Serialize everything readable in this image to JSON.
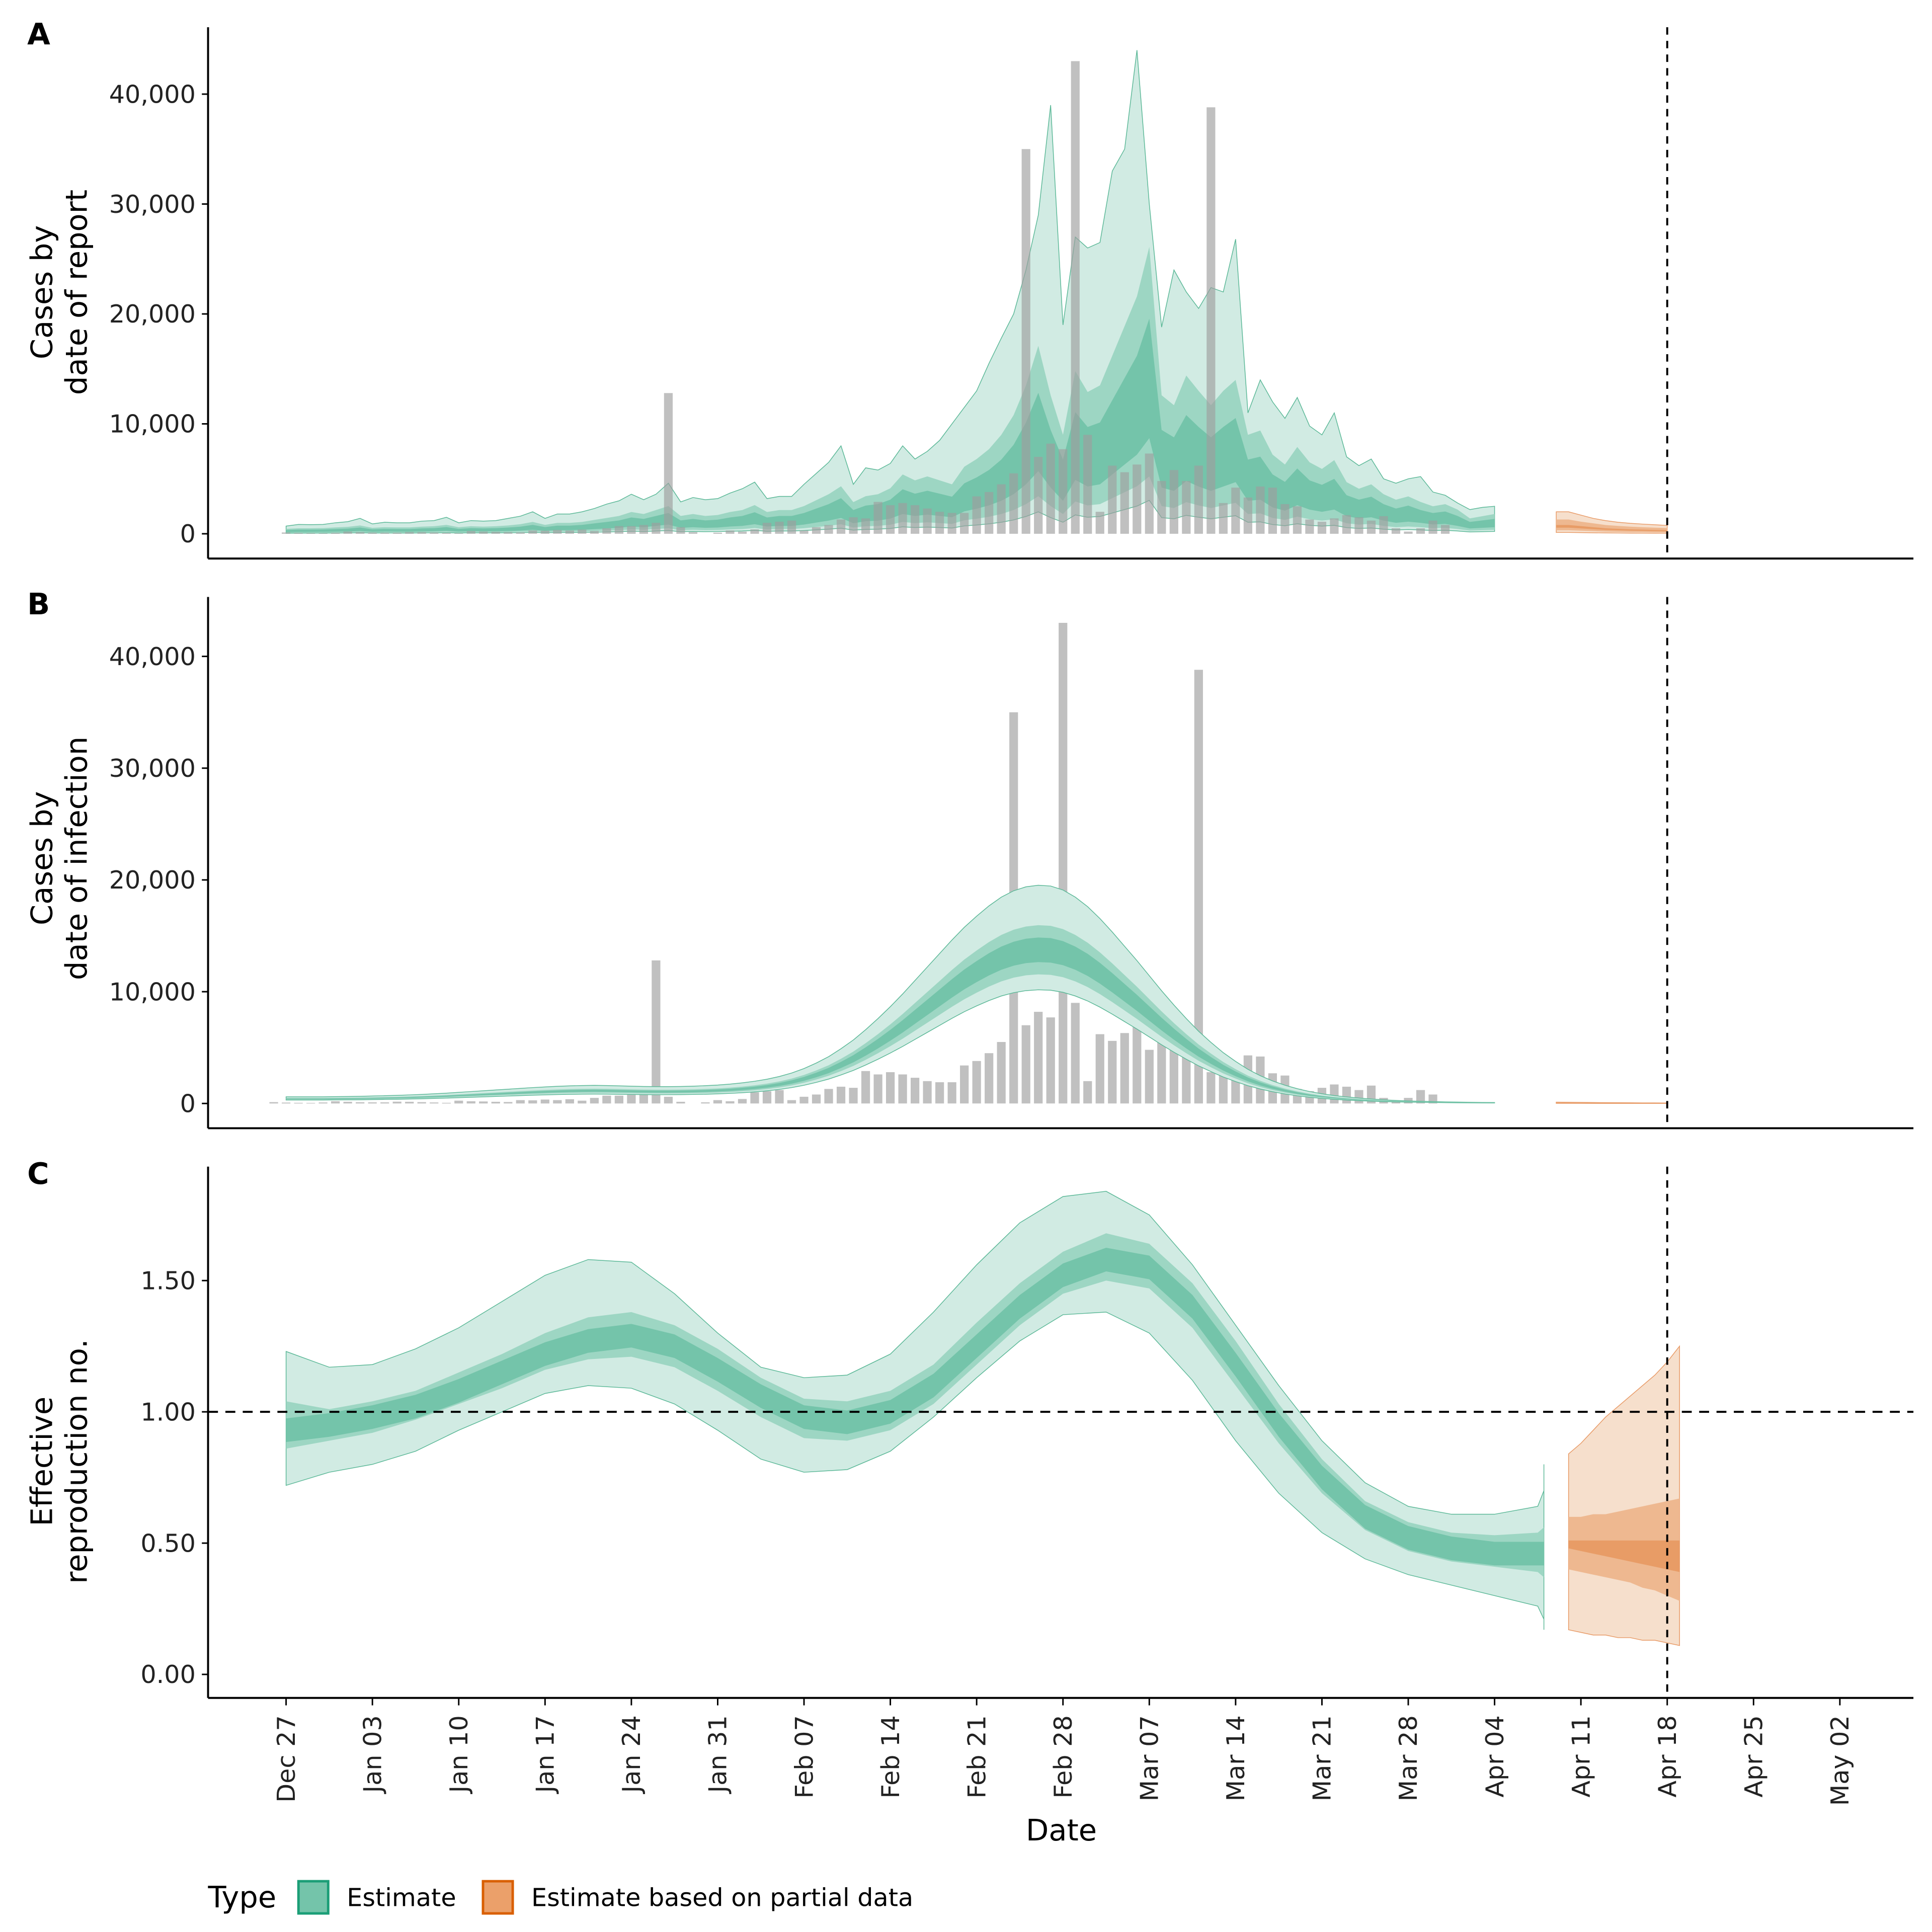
{
  "chart_data": [
    {
      "panel": "A",
      "type": "bar",
      "ylabel": [
        "Cases by",
        "date of report"
      ],
      "yticks": [
        0,
        10000,
        20000,
        30000,
        40000
      ],
      "ytick_labels": [
        "0",
        "10,000",
        "20,000",
        "30,000",
        "40,000"
      ],
      "ylim": [
        -2200,
        46000
      ],
      "bars_start_date": "Dec 27",
      "bars": [
        120,
        80,
        60,
        50,
        90,
        200,
        150,
        110,
        100,
        100,
        160,
        150,
        120,
        90,
        60,
        250,
        200,
        180,
        150,
        130,
        300,
        280,
        350,
        300,
        380,
        250,
        500,
        700,
        700,
        800,
        1000,
        12800,
        600,
        150,
        0,
        100,
        300,
        200,
        400,
        1000,
        1100,
        1200,
        300,
        600,
        800,
        1300,
        1500,
        1400,
        2900,
        2600,
        2800,
        2600,
        2300,
        2000,
        1900,
        1900,
        3400,
        3800,
        4500,
        5500,
        35000,
        7000,
        8200,
        7700,
        43000,
        9000,
        2000,
        6200,
        5600,
        6300,
        7300,
        4800,
        5800,
        4800,
        6200,
        38800,
        2800,
        4200,
        3300,
        4300,
        4200,
        2700,
        2500,
        1300,
        1100,
        1400,
        1700,
        1500,
        1200,
        1600,
        500,
        200,
        500,
        1200,
        800
      ],
      "estimate": {
        "start_date": "Dec 27",
        "median": [
          250,
          280,
          280,
          290,
          320,
          350,
          420,
          300,
          330,
          320,
          320,
          360,
          380,
          450,
          330,
          380,
          360,
          380,
          420,
          480,
          600,
          450,
          550,
          550,
          600,
          700,
          800,
          900,
          1100,
          1000,
          1200,
          1400,
          900,
          1000,
          900,
          950,
          1100,
          1200,
          1450,
          1100,
          1200,
          1200,
          1400,
          1700,
          2000,
          2400,
          1600,
          1900,
          2000,
          2300,
          3000,
          2700,
          2900,
          2700,
          2500,
          3400,
          3800,
          4300,
          5000,
          6000,
          7500,
          9500,
          7000,
          5000,
          8200,
          7200,
          7500,
          9000,
          10500,
          12000,
          14500,
          7000,
          6500,
          8000,
          7200,
          6500,
          7200,
          7800,
          5000,
          5200,
          4000,
          3500,
          4400,
          3600,
          3300,
          3700,
          2600,
          2300,
          2500,
          2000,
          1700,
          1900,
          1600,
          1400,
          1500,
          1200,
          800,
          900,
          1000
        ],
        "ci20_lo": [
          150,
          170,
          170,
          180,
          190,
          210,
          250,
          180,
          200,
          190,
          190,
          210,
          230,
          270,
          200,
          230,
          220,
          230,
          250,
          290,
          360,
          270,
          330,
          330,
          360,
          420,
          480,
          540,
          660,
          600,
          720,
          840,
          540,
          600,
          540,
          570,
          660,
          720,
          870,
          660,
          720,
          720,
          840,
          1020,
          1200,
          1440,
          960,
          1140,
          1200,
          1380,
          1800,
          1620,
          1740,
          1620,
          1500,
          2040,
          2280,
          2580,
          3000,
          3600,
          4500,
          5700,
          4200,
          3000,
          4900,
          4300,
          4500,
          5400,
          6300,
          7200,
          8700,
          4200,
          3900,
          4800,
          4300,
          3900,
          4300,
          4700,
          3000,
          3100,
          2400,
          2100,
          2600,
          2200,
          2000,
          2200,
          1600,
          1400,
          1500,
          1200,
          1000,
          1100,
          1000,
          850,
          900,
          720,
          480,
          540,
          600
        ],
        "ci50_hi": [
          450,
          500,
          500,
          520,
          580,
          630,
          760,
          540,
          600,
          580,
          580,
          650,
          690,
          810,
          600,
          690,
          650,
          690,
          760,
          870,
          1080,
          810,
          990,
          990,
          1080,
          1260,
          1440,
          1620,
          1980,
          1800,
          2160,
          2520,
          1620,
          1800,
          1620,
          1710,
          1980,
          2160,
          2610,
          1980,
          2160,
          2160,
          2520,
          3060,
          3600,
          4320,
          2880,
          3420,
          3600,
          4140,
          5400,
          4860,
          5220,
          4860,
          4500,
          6100,
          6800,
          7700,
          9000,
          10800,
          13500,
          17100,
          12600,
          9000,
          14800,
          12900,
          13500,
          16200,
          18900,
          21600,
          26100,
          12600,
          11700,
          14400,
          13000,
          11700,
          13000,
          14000,
          9000,
          9400,
          7200,
          6300,
          7900,
          6500,
          5900,
          6700,
          4700,
          4100,
          4500,
          3600,
          3100,
          3400,
          2900,
          2500,
          2700,
          2200,
          1400,
          1600,
          1800
        ],
        "ci90_hi": [
          700,
          850,
          830,
          850,
          1000,
          1100,
          1400,
          900,
          1050,
          1000,
          1000,
          1150,
          1200,
          1500,
          1000,
          1200,
          1150,
          1200,
          1400,
          1600,
          2000,
          1400,
          1800,
          1800,
          2000,
          2300,
          2700,
          3000,
          3600,
          3100,
          3600,
          4600,
          2900,
          3300,
          3100,
          3200,
          3700,
          4100,
          4700,
          3200,
          3400,
          3400,
          4500,
          5500,
          6500,
          8000,
          4500,
          6000,
          5800,
          6400,
          8000,
          6800,
          7500,
          8500,
          10000,
          11500,
          13000,
          15500,
          17800,
          20000,
          24000,
          29000,
          39000,
          19000,
          27000,
          26000,
          26500,
          33000,
          35000,
          44000,
          30000,
          18800,
          24000,
          22000,
          20500,
          22400,
          22000,
          26800,
          11000,
          14000,
          12000,
          10500,
          12400,
          9800,
          9000,
          11000,
          7000,
          6200,
          6800,
          5000,
          4600,
          5000,
          5200,
          3800,
          3500,
          2800,
          2200,
          2400,
          2500
        ]
      },
      "partial": {
        "start_date": "Apr 09",
        "median": [
          800,
          800,
          700,
          600,
          500,
          450,
          400,
          380,
          350,
          330
        ],
        "ci50_hi": [
          1300,
          1300,
          1100,
          950,
          800,
          720,
          650,
          600,
          560,
          520
        ],
        "ci90_hi": [
          2000,
          2000,
          1700,
          1400,
          1200,
          1050,
          950,
          880,
          820,
          760
        ]
      }
    },
    {
      "panel": "B",
      "type": "bar",
      "ylabel": [
        "Cases by",
        "date of infection"
      ],
      "yticks": [
        0,
        10000,
        20000,
        30000,
        40000
      ],
      "ytick_labels": [
        "0",
        "10,000",
        "20,000",
        "30,000",
        "40,000"
      ],
      "ylim": [
        -2200,
        46000
      ],
      "bars_ref": "A",
      "estimate": {
        "start_date": "Dec 27",
        "median": [
          420,
          420,
          420,
          420,
          430,
          440,
          450,
          470,
          490,
          510,
          540,
          570,
          610,
          650,
          700,
          750,
          800,
          850,
          900,
          950,
          1000,
          1040,
          1080,
          1110,
          1130,
          1140,
          1130,
          1110,
          1090,
          1070,
          1060,
          1060,
          1070,
          1090,
          1120,
          1160,
          1220,
          1300,
          1400,
          1530,
          1700,
          1920,
          2200,
          2550,
          2950,
          3450,
          4000,
          4650,
          5350,
          6100,
          6900,
          7750,
          8600,
          9450,
          10300,
          11100,
          11800,
          12450,
          13000,
          13400,
          13650,
          13750,
          13700,
          13450,
          13000,
          12400,
          11650,
          10800,
          9900,
          9000,
          8050,
          7100,
          6200,
          5350,
          4550,
          3850,
          3200,
          2650,
          2150,
          1750,
          1420,
          1150,
          930,
          750,
          610,
          500,
          410,
          340,
          280,
          230,
          190,
          160,
          140,
          120,
          100,
          85,
          75,
          65,
          60
        ],
        "ci20_hi_delta": 0.08,
        "ci50_hi_delta": 0.16,
        "ci90_hi_delta": 0.42
      },
      "partial": {
        "start_date": "Apr 09",
        "median": [
          50,
          45,
          40,
          35,
          30,
          28,
          25,
          22,
          20,
          18
        ]
      }
    },
    {
      "panel": "C",
      "type": "area",
      "ylabel": [
        "Effective",
        "reproduction no."
      ],
      "yticks": [
        0,
        0.5,
        1.0,
        1.5
      ],
      "ytick_labels": [
        "0.00",
        "0.50",
        "1.00",
        "1.50"
      ],
      "ylim": [
        -0.09,
        1.93
      ],
      "reference_line": 1.0,
      "estimate": {
        "start_date": "Dec 27",
        "step_days": 3.5,
        "median": [
          0.93,
          0.95,
          0.98,
          1.02,
          1.08,
          1.15,
          1.22,
          1.27,
          1.29,
          1.25,
          1.16,
          1.06,
          0.98,
          0.96,
          1.0,
          1.1,
          1.25,
          1.4,
          1.52,
          1.58,
          1.55,
          1.4,
          1.18,
          0.95,
          0.75,
          0.6,
          0.52,
          0.48,
          0.46,
          0.46,
          0.46,
          0.46
        ],
        "ci50_lo": [
          0.86,
          0.89,
          0.92,
          0.97,
          1.03,
          1.09,
          1.16,
          1.2,
          1.21,
          1.17,
          1.08,
          0.98,
          0.9,
          0.89,
          0.93,
          1.03,
          1.18,
          1.33,
          1.45,
          1.5,
          1.47,
          1.32,
          1.1,
          0.88,
          0.69,
          0.55,
          0.47,
          0.43,
          0.41,
          0.39,
          0.37,
          0.34
        ],
        "ci50_hi": [
          1.04,
          1.01,
          1.04,
          1.08,
          1.15,
          1.22,
          1.3,
          1.36,
          1.38,
          1.33,
          1.24,
          1.13,
          1.05,
          1.04,
          1.08,
          1.18,
          1.34,
          1.49,
          1.61,
          1.68,
          1.64,
          1.49,
          1.27,
          1.03,
          0.82,
          0.66,
          0.58,
          0.54,
          0.53,
          0.54,
          0.56,
          0.59
        ],
        "ci90_lo": [
          0.72,
          0.77,
          0.8,
          0.85,
          0.93,
          1.0,
          1.07,
          1.1,
          1.09,
          1.03,
          0.93,
          0.82,
          0.77,
          0.78,
          0.85,
          0.98,
          1.13,
          1.27,
          1.37,
          1.38,
          1.3,
          1.12,
          0.89,
          0.69,
          0.54,
          0.44,
          0.38,
          0.34,
          0.3,
          0.26,
          0.21,
          0.17
        ],
        "ci90_hi": [
          1.23,
          1.17,
          1.18,
          1.24,
          1.32,
          1.42,
          1.52,
          1.58,
          1.57,
          1.45,
          1.3,
          1.17,
          1.13,
          1.14,
          1.22,
          1.38,
          1.56,
          1.72,
          1.82,
          1.84,
          1.75,
          1.56,
          1.33,
          1.1,
          0.89,
          0.73,
          0.64,
          0.61,
          0.61,
          0.64,
          0.7,
          0.8
        ]
      },
      "partial": {
        "start_date": "Apr 09",
        "days": 9,
        "median_lo": [
          0.48,
          0.47,
          0.46,
          0.45,
          0.44,
          0.43,
          0.42,
          0.41,
          0.4,
          0.39
        ],
        "median_hi": [
          0.51,
          0.51,
          0.51,
          0.51,
          0.51,
          0.51,
          0.51,
          0.51,
          0.51,
          0.51
        ],
        "ci50_lo": [
          0.4,
          0.39,
          0.38,
          0.37,
          0.36,
          0.35,
          0.33,
          0.32,
          0.3,
          0.28
        ],
        "ci50_hi": [
          0.6,
          0.6,
          0.61,
          0.61,
          0.62,
          0.63,
          0.64,
          0.65,
          0.66,
          0.67
        ],
        "ci90_lo": [
          0.17,
          0.16,
          0.15,
          0.15,
          0.14,
          0.14,
          0.13,
          0.13,
          0.12,
          0.11
        ],
        "ci90_hi": [
          0.84,
          0.88,
          0.93,
          0.98,
          1.02,
          1.06,
          1.1,
          1.14,
          1.19,
          1.25
        ]
      }
    }
  ],
  "x_axis": {
    "title": "Date",
    "tick_labels": [
      "Dec 27",
      "Jan 03",
      "Jan 10",
      "Jan 17",
      "Jan 24",
      "Jan 31",
      "Feb 07",
      "Feb 14",
      "Feb 21",
      "Feb 28",
      "Mar 07",
      "Mar 14",
      "Mar 21",
      "Mar 28",
      "Apr 04",
      "Apr 11",
      "Apr 18",
      "Apr 25",
      "May 02"
    ],
    "range_days": [
      -9,
      128
    ],
    "vline_label": "Apr 18",
    "vline_day": 112
  },
  "legend": {
    "title": "Type",
    "position": "bottom-left",
    "items": [
      {
        "label": "Estimate",
        "fill": "#74c4aa",
        "stroke": "#1b9e77"
      },
      {
        "label": "Estimate based on partial data",
        "fill": "#eba06a",
        "stroke": "#d95f02"
      }
    ]
  },
  "colors": {
    "estimate_outer": "#d1ebe3",
    "estimate_mid": "#9dd6c3",
    "estimate_inner": "#74c4aa",
    "estimate_line": "#5bb897",
    "partial_outer": "#f6dfcc",
    "partial_mid": "#eeb890",
    "partial_inner": "#e89c66",
    "partial_line": "#e89a66",
    "bars": "#9e9e9e"
  }
}
